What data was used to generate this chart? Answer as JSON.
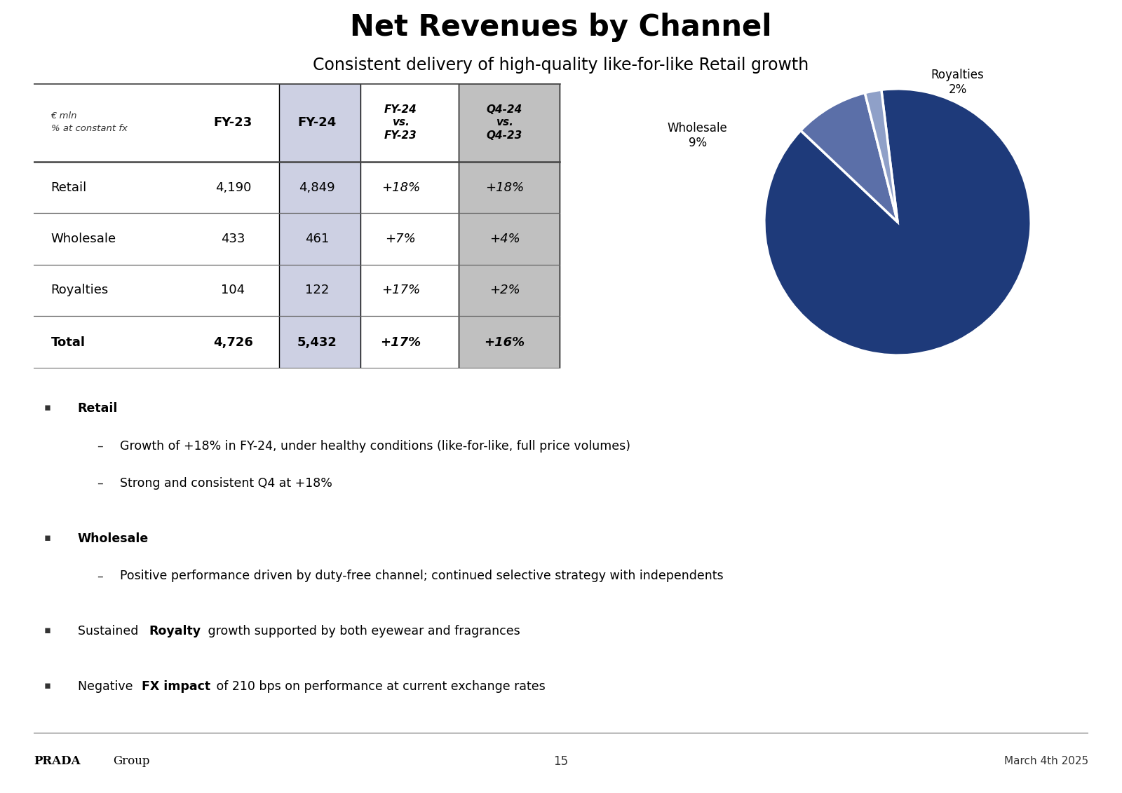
{
  "title": "Net Revenues by Channel",
  "subtitle": "Consistent delivery of high-quality like-for-like Retail growth",
  "rows": [
    {
      "label": "Retail",
      "fy23": "4,190",
      "fy24": "4,849",
      "vs_fy": "+18%",
      "vs_q4": "+18%",
      "bold": false
    },
    {
      "label": "Wholesale",
      "fy23": "433",
      "fy24": "461",
      "vs_fy": "+7%",
      "vs_q4": "+4%",
      "bold": false
    },
    {
      "label": "Royalties",
      "fy23": "104",
      "fy24": "122",
      "vs_fy": "+17%",
      "vs_q4": "+2%",
      "bold": false
    },
    {
      "label": "Total",
      "fy23": "4,726",
      "fy24": "5,432",
      "vs_fy": "+17%",
      "vs_q4": "+16%",
      "bold": true
    }
  ],
  "pie_values": [
    89,
    9,
    2
  ],
  "pie_colors": [
    "#1E3A7A",
    "#5B6FA8",
    "#8FA0C8"
  ],
  "footer_left": "PRADA Group",
  "footer_center": "15",
  "footer_right": "March 4th 2025",
  "bg_color": "#FFFFFF",
  "table_fy24_bg": "#CDD0E3",
  "table_q4_bg": "#C0C0C0",
  "line_color": "#666666",
  "header_line_color": "#444444"
}
